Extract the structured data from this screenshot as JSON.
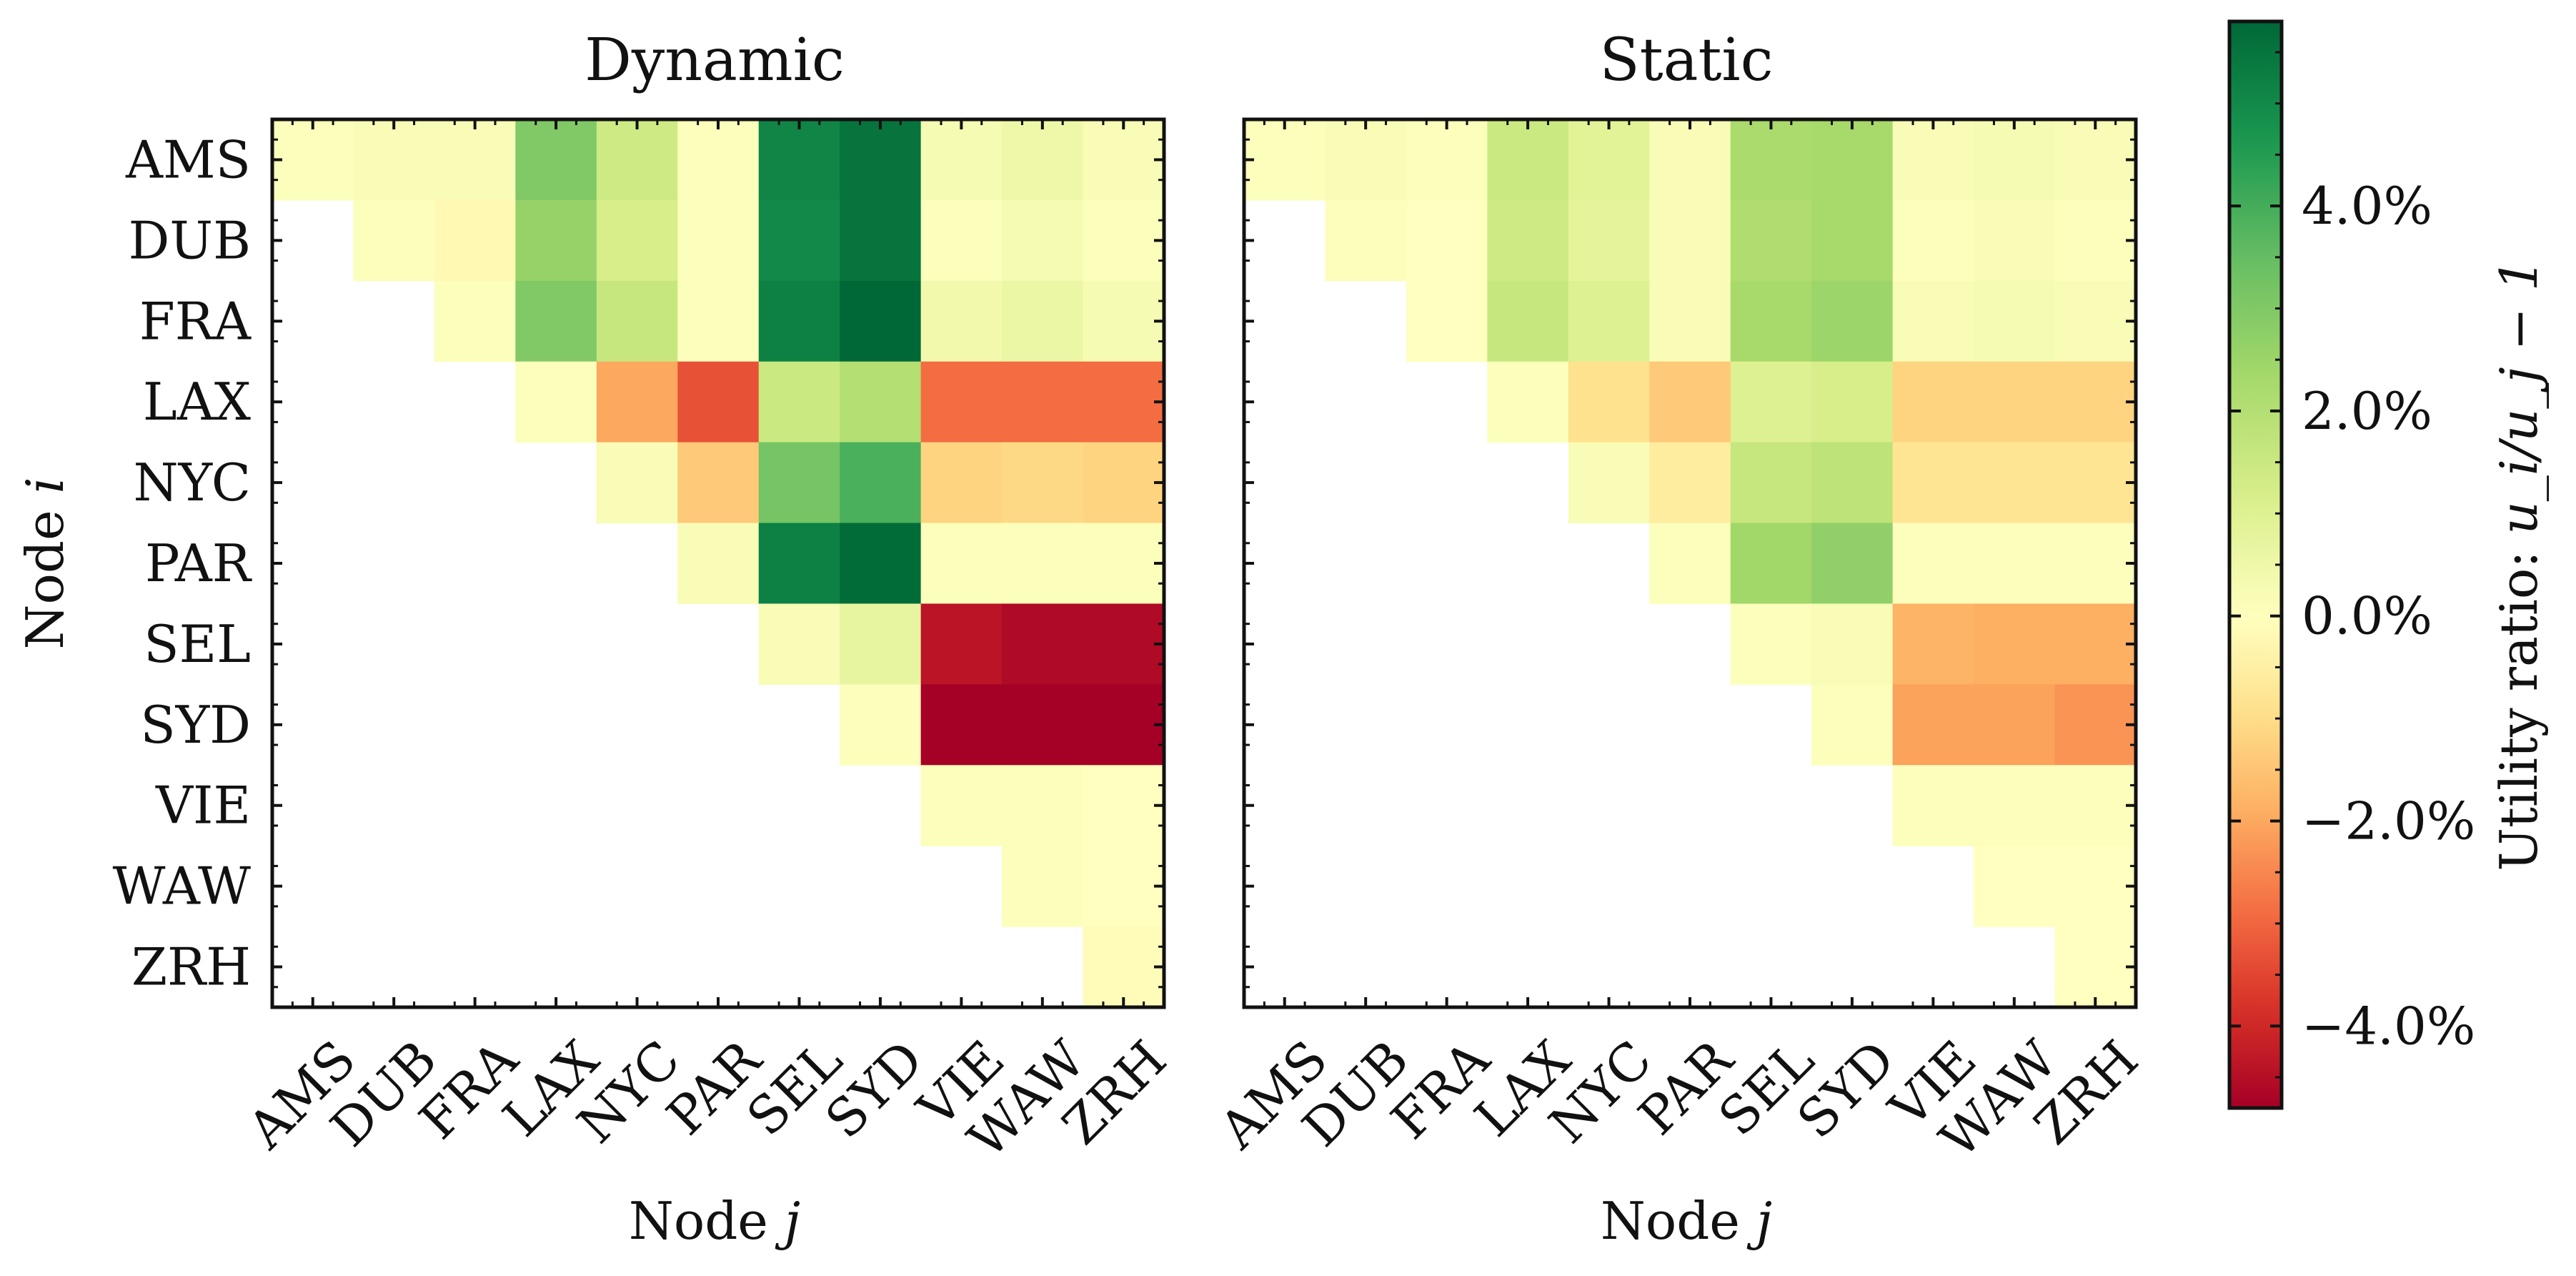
{
  "chart_data": [
    {
      "type": "heatmap",
      "title": "Dynamic",
      "xlabel": "Node",
      "xlabel_var": "j",
      "ylabel": "Node",
      "ylabel_var": "i",
      "x_categories": [
        "AMS",
        "DUB",
        "FRA",
        "LAX",
        "NYC",
        "PAR",
        "SEL",
        "SYD",
        "VIE",
        "WAW",
        "ZRH"
      ],
      "y_categories": [
        "AMS",
        "DUB",
        "FRA",
        "LAX",
        "NYC",
        "PAR",
        "SEL",
        "SYD",
        "VIE",
        "WAW",
        "ZRH"
      ],
      "values": [
        [
          0.1,
          0.2,
          0.2,
          3.0,
          1.4,
          0.1,
          5.1,
          5.5,
          0.3,
          0.5,
          0.2
        ],
        [
          null,
          0.1,
          -0.2,
          2.6,
          1.2,
          0.1,
          5.0,
          5.5,
          0.1,
          0.3,
          0.1
        ],
        [
          null,
          null,
          0.1,
          3.0,
          1.6,
          0.1,
          5.2,
          5.8,
          0.4,
          0.6,
          0.3
        ],
        [
          null,
          null,
          null,
          0.1,
          -2.0,
          -3.3,
          1.5,
          2.0,
          -2.9,
          -2.9,
          -2.9
        ],
        [
          null,
          null,
          null,
          null,
          0.2,
          -1.4,
          3.2,
          3.9,
          -1.2,
          -1.1,
          -1.2
        ],
        [
          null,
          null,
          null,
          null,
          null,
          0.2,
          5.2,
          5.7,
          0.1,
          0.1,
          0.1
        ],
        [
          null,
          null,
          null,
          null,
          null,
          null,
          0.2,
          0.7,
          -4.4,
          -4.6,
          -4.6
        ],
        [
          null,
          null,
          null,
          null,
          null,
          null,
          null,
          0.1,
          -5.0,
          -5.0,
          -5.3
        ],
        [
          null,
          null,
          null,
          null,
          null,
          null,
          null,
          null,
          0.1,
          0.1,
          0.0
        ],
        [
          null,
          null,
          null,
          null,
          null,
          null,
          null,
          null,
          null,
          0.1,
          0.0
        ],
        [
          null,
          null,
          null,
          null,
          null,
          null,
          null,
          null,
          null,
          null,
          -0.1
        ]
      ]
    },
    {
      "type": "heatmap",
      "title": "Static",
      "xlabel": "Node",
      "xlabel_var": "j",
      "ylabel": "",
      "ylabel_var": "",
      "x_categories": [
        "AMS",
        "DUB",
        "FRA",
        "LAX",
        "NYC",
        "PAR",
        "SEL",
        "SYD",
        "VIE",
        "WAW",
        "ZRH"
      ],
      "y_categories": [
        "AMS",
        "DUB",
        "FRA",
        "LAX",
        "NYC",
        "PAR",
        "SEL",
        "SYD",
        "VIE",
        "WAW",
        "ZRH"
      ],
      "values": [
        [
          0.1,
          0.2,
          0.1,
          1.5,
          0.9,
          0.2,
          2.2,
          2.3,
          0.2,
          0.3,
          0.2
        ],
        [
          null,
          0.1,
          0.0,
          1.4,
          0.8,
          0.2,
          2.1,
          2.3,
          0.1,
          0.2,
          0.1
        ],
        [
          null,
          null,
          0.0,
          1.6,
          1.0,
          0.2,
          2.3,
          2.5,
          0.2,
          0.3,
          0.2
        ],
        [
          null,
          null,
          null,
          0.1,
          -0.9,
          -1.4,
          1.0,
          1.2,
          -1.2,
          -1.2,
          -1.2
        ],
        [
          null,
          null,
          null,
          null,
          0.2,
          -0.6,
          1.6,
          1.8,
          -0.8,
          -0.8,
          -0.8
        ],
        [
          null,
          null,
          null,
          null,
          null,
          0.1,
          2.4,
          2.7,
          0.1,
          0.1,
          0.1
        ],
        [
          null,
          null,
          null,
          null,
          null,
          null,
          0.1,
          0.2,
          -1.8,
          -1.9,
          -1.9
        ],
        [
          null,
          null,
          null,
          null,
          null,
          null,
          null,
          0.1,
          -2.1,
          -2.1,
          -2.3
        ],
        [
          null,
          null,
          null,
          null,
          null,
          null,
          null,
          null,
          0.1,
          0.1,
          0.1
        ],
        [
          null,
          null,
          null,
          null,
          null,
          null,
          null,
          null,
          null,
          0.0,
          0.0
        ],
        [
          null,
          null,
          null,
          null,
          null,
          null,
          null,
          null,
          null,
          null,
          0.0
        ]
      ]
    }
  ],
  "colorbar": {
    "label": "Utility ratio: ",
    "label_formula": "u_i/u_j − 1",
    "colormap": "RdYlGn",
    "vmin": -4.8,
    "vmax": 5.8,
    "ticks": [
      4.0,
      2.0,
      0.0,
      -2.0,
      -4.0
    ],
    "tick_labels": [
      "4.0%",
      "2.0%",
      "0.0%",
      "−2.0%",
      "−4.0%"
    ]
  }
}
